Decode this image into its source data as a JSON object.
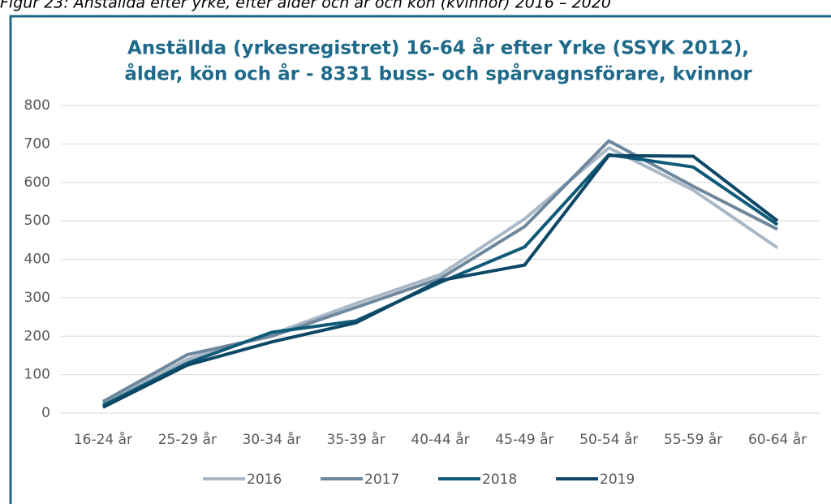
{
  "caption": "Figur 23: Anställda efter yrke, efter ålder och år och kön (kvinnor) 2016 – 2020",
  "chart_data": {
    "type": "line",
    "title": [
      "Anställda (yrkesregistret) 16-64 år efter Yrke (SSYK 2012),",
      "ålder, kön och år - 8331 buss- och spårvagnsförare, kvinnor"
    ],
    "categories": [
      "16-24 år",
      "25-29 år",
      "30-34 år",
      "35-39 år",
      "40-44 år",
      "45-49 år",
      "50-54 år",
      "55-59 år",
      "60-64 år"
    ],
    "series": [
      {
        "name": "2016",
        "color": "#a9b8c6",
        "values": [
          25,
          140,
          205,
          285,
          360,
          505,
          690,
          580,
          430
        ]
      },
      {
        "name": "2017",
        "color": "#6f879c",
        "values": [
          30,
          152,
          200,
          275,
          350,
          485,
          708,
          590,
          478
        ]
      },
      {
        "name": "2018",
        "color": "#0f5a78",
        "values": [
          20,
          130,
          210,
          240,
          340,
          432,
          672,
          640,
          490
        ]
      },
      {
        "name": "2019",
        "color": "#0d4766",
        "values": [
          15,
          125,
          185,
          235,
          345,
          385,
          670,
          668,
          500
        ]
      }
    ],
    "ylim": [
      0,
      800
    ],
    "yticks": [
      0,
      100,
      200,
      300,
      400,
      500,
      600,
      700,
      800
    ],
    "grid": true,
    "legend": "bottom"
  }
}
